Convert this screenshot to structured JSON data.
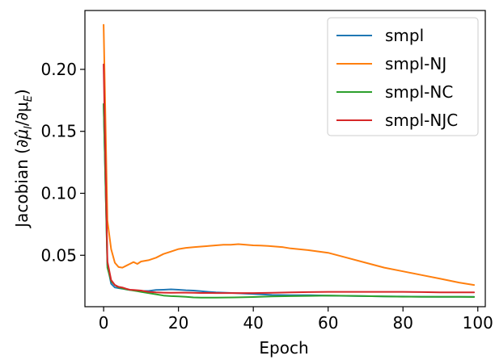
{
  "chart_data": {
    "type": "line",
    "xlabel": "Epoch",
    "ylabel_parts": {
      "prefix": "Jacobian (∂",
      "mu_hat": "μ̂",
      "sub_i": "I",
      "slash": "/∂μ",
      "sub_e": "E",
      "suffix": ")"
    },
    "xlim": [
      -5,
      102
    ],
    "ylim": [
      0.0085,
      0.2475
    ],
    "xticks": [
      0,
      20,
      40,
      60,
      80,
      100
    ],
    "xtick_labels": [
      "0",
      "20",
      "40",
      "60",
      "80",
      "100"
    ],
    "yticks": [
      0.05,
      0.1,
      0.15,
      0.2
    ],
    "ytick_labels": [
      "0.05",
      "0.10",
      "0.15",
      "0.20"
    ],
    "grid": false,
    "legend_position": "top-right",
    "series": [
      {
        "name": "smpl",
        "color": "#1f77b4",
        "x": [
          0,
          1,
          2,
          3,
          4,
          5,
          6,
          7,
          8,
          9,
          10,
          12,
          14,
          16,
          18,
          20,
          22,
          24,
          26,
          28,
          30,
          35,
          40,
          45,
          50,
          55,
          60,
          65,
          70,
          75,
          80,
          85,
          90,
          95,
          99
        ],
        "values": [
          0.172,
          0.042,
          0.027,
          0.024,
          0.0235,
          0.023,
          0.0225,
          0.022,
          0.0218,
          0.0215,
          0.0212,
          0.0212,
          0.022,
          0.0222,
          0.0225,
          0.0222,
          0.0218,
          0.0215,
          0.021,
          0.0205,
          0.02,
          0.0195,
          0.0188,
          0.018,
          0.0178,
          0.0178,
          0.0175,
          0.0172,
          0.017,
          0.0168,
          0.0167,
          0.0166,
          0.0165,
          0.0165,
          0.0165
        ]
      },
      {
        "name": "smpl-NJ",
        "color": "#ff7f0e",
        "x": [
          0,
          1,
          2,
          3,
          4,
          5,
          6,
          7,
          8,
          9,
          10,
          12,
          14,
          16,
          18,
          20,
          22,
          24,
          26,
          28,
          30,
          32,
          34,
          36,
          38,
          40,
          42,
          44,
          46,
          48,
          50,
          55,
          60,
          65,
          70,
          75,
          80,
          85,
          90,
          95,
          99
        ],
        "values": [
          0.236,
          0.078,
          0.055,
          0.044,
          0.0405,
          0.04,
          0.0415,
          0.043,
          0.0445,
          0.043,
          0.045,
          0.046,
          0.048,
          0.051,
          0.053,
          0.055,
          0.056,
          0.0565,
          0.057,
          0.0575,
          0.058,
          0.0585,
          0.0585,
          0.059,
          0.0585,
          0.058,
          0.0578,
          0.0575,
          0.057,
          0.0565,
          0.0555,
          0.054,
          0.052,
          0.048,
          0.044,
          0.04,
          0.037,
          0.034,
          0.031,
          0.028,
          0.026
        ]
      },
      {
        "name": "smpl-NC",
        "color": "#2ca02c",
        "x": [
          0,
          1,
          2,
          3,
          4,
          5,
          6,
          7,
          8,
          9,
          10,
          12,
          14,
          16,
          18,
          20,
          22,
          24,
          26,
          28,
          30,
          35,
          40,
          45,
          50,
          55,
          60,
          65,
          70,
          75,
          80,
          85,
          90,
          95,
          99
        ],
        "values": [
          0.172,
          0.04,
          0.029,
          0.026,
          0.024,
          0.0232,
          0.0225,
          0.022,
          0.0215,
          0.021,
          0.0205,
          0.0195,
          0.0185,
          0.0175,
          0.017,
          0.0168,
          0.0165,
          0.016,
          0.0158,
          0.0158,
          0.0158,
          0.016,
          0.0163,
          0.0168,
          0.017,
          0.0172,
          0.0175,
          0.0173,
          0.017,
          0.0168,
          0.0166,
          0.0165,
          0.0165,
          0.0165,
          0.0163
        ]
      },
      {
        "name": "smpl-NJC",
        "color": "#d62728",
        "x": [
          0,
          1,
          2,
          3,
          4,
          5,
          6,
          7,
          8,
          9,
          10,
          12,
          14,
          16,
          18,
          20,
          22,
          24,
          26,
          28,
          30,
          35,
          40,
          45,
          50,
          55,
          60,
          65,
          70,
          75,
          80,
          85,
          90,
          95,
          99
        ],
        "values": [
          0.204,
          0.045,
          0.03,
          0.026,
          0.0245,
          0.024,
          0.023,
          0.0222,
          0.022,
          0.0218,
          0.0215,
          0.0205,
          0.02,
          0.0198,
          0.0197,
          0.0198,
          0.0198,
          0.0197,
          0.0196,
          0.0196,
          0.0195,
          0.0195,
          0.0195,
          0.0197,
          0.02,
          0.0203,
          0.0205,
          0.0205,
          0.0205,
          0.0205,
          0.0205,
          0.0203,
          0.02,
          0.02,
          0.02
        ]
      }
    ]
  }
}
